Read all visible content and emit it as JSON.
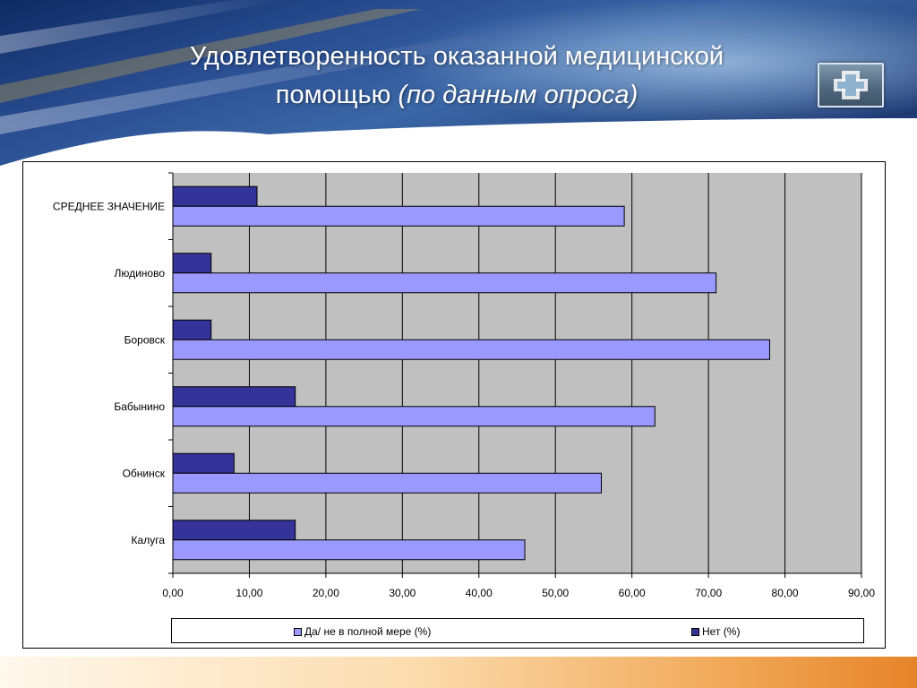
{
  "slide": {
    "title_line1": "Удовлетворенность  оказанной медицинской",
    "title_line2_plain": "помощью ",
    "title_line2_italic": "(по данным опроса)",
    "logo_icon": "medical-cross-icon"
  },
  "colors": {
    "plot_background": "#c0c0c0",
    "series_yes_partial": "#9999ff",
    "series_no": "#333399",
    "accent_orange": "#e6842a"
  },
  "chart_data": {
    "type": "bar",
    "orientation": "horizontal",
    "categories": [
      "СРЕДНЕЕ ЗНАЧЕНИЕ",
      "Людиново",
      "Боровск",
      "Бабынино",
      "Обнинск",
      "Калуга"
    ],
    "series": [
      {
        "name": "Нет (%)",
        "values": [
          11,
          5,
          5,
          16,
          8,
          16
        ]
      },
      {
        "name": "Да/ не в полной мере (%)",
        "values": [
          59,
          71,
          78,
          63,
          56,
          46
        ]
      }
    ],
    "x_ticks": [
      "0,00",
      "10,00",
      "20,00",
      "30,00",
      "40,00",
      "50,00",
      "60,00",
      "70,00",
      "80,00",
      "90,00"
    ],
    "xlim": [
      0,
      90
    ],
    "legend_position": "bottom",
    "grid": true
  },
  "legend": {
    "items": [
      {
        "label": "Да/ не в полной мере (%)"
      },
      {
        "label": "Нет (%)"
      }
    ]
  }
}
